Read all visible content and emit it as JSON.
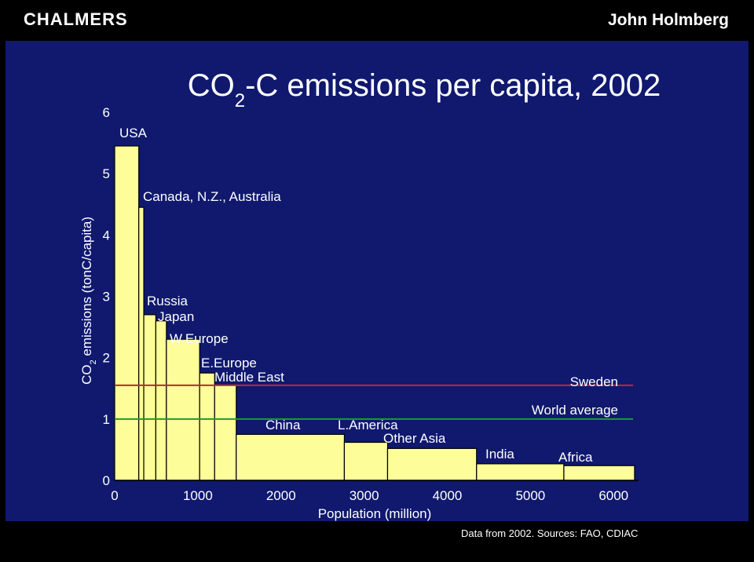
{
  "header": {
    "brand": "CHALMERS",
    "author": "John Holmberg"
  },
  "footer": {
    "note": "Data from 2002. Sources: FAO, CDIAC"
  },
  "chart_data": {
    "type": "bar",
    "title": "CO₂-C emissions per capita, 2002",
    "xlabel": "Population (million)",
    "ylabel": "CO₂ emissions (tonC/capita)",
    "xlim": [
      0,
      6300
    ],
    "ylim": [
      0,
      6
    ],
    "xticks": [
      0,
      1000,
      2000,
      3000,
      4000,
      5000,
      6000
    ],
    "yticks": [
      0,
      1,
      2,
      3,
      4,
      5,
      6
    ],
    "grid": false,
    "regions": [
      {
        "label": "USA",
        "population": 290,
        "emission": 5.45
      },
      {
        "label": "Canada, N.Z., Australia",
        "population": 60,
        "emission": 4.45
      },
      {
        "label": "Russia",
        "population": 145,
        "emission": 2.7
      },
      {
        "label": "Japan",
        "population": 127,
        "emission": 2.6
      },
      {
        "label": "W.Europe",
        "population": 400,
        "emission": 2.3
      },
      {
        "label": "E.Europe",
        "population": 180,
        "emission": 1.75
      },
      {
        "label": "Middle East",
        "population": 260,
        "emission": 1.55
      },
      {
        "label": "China",
        "population": 1300,
        "emission": 0.75
      },
      {
        "label": "L.America",
        "population": 520,
        "emission": 0.62
      },
      {
        "label": "Other Asia",
        "population": 1070,
        "emission": 0.52
      },
      {
        "label": "India",
        "population": 1050,
        "emission": 0.27
      },
      {
        "label": "Africa",
        "population": 850,
        "emission": 0.24
      }
    ],
    "reference_lines": [
      {
        "label": "Sweden",
        "value": 1.55,
        "color": "#c0282c"
      },
      {
        "label": "World average",
        "value": 1.0,
        "color": "#1f9a2e"
      }
    ],
    "colors": {
      "bar_fill": "#fdfd9a",
      "bar_stroke": "#000000",
      "background": "#10196e",
      "text": "#ffffff"
    }
  }
}
